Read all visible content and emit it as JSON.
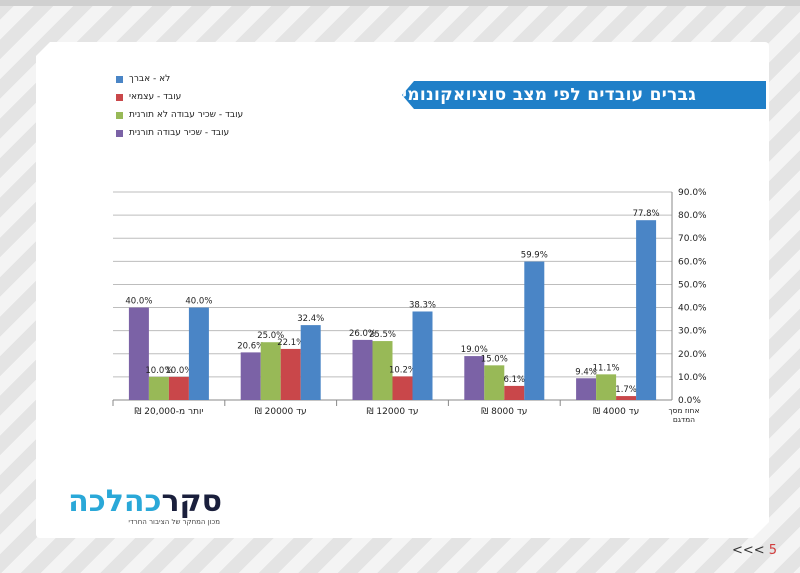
{
  "title": "גברים עובדים לפי מצב סוציואקונומי",
  "logo": {
    "dark_text": "סקר",
    "blue_text": "כהלכה",
    "subtitle": "מכון המחקר של הציבור החרדי"
  },
  "pager": {
    "arrows": "<<<",
    "page": "5"
  },
  "colors": {
    "banner": "#1f7fc8"
  },
  "chart_data": {
    "type": "bar",
    "title": "גברים עובדים לפי מצב סוציואקונומי",
    "categories": [
      "יותר מ-20,000 ₪",
      "עד 20000 ₪",
      "עד 12000 ₪",
      "עד 8000 ₪",
      "עד 4000 ₪"
    ],
    "series": [
      {
        "name": "עובד - שכיר עבודה תורנית",
        "color": "#7b62a6",
        "values": [
          40.0,
          20.6,
          26.0,
          19.0,
          9.4
        ],
        "labels": [
          "40.0%",
          "20.6%",
          "26.0%",
          "19.0%",
          "9.4%"
        ]
      },
      {
        "name": "עובד - שכיר עבודה לא תורנית",
        "color": "#98b957",
        "values": [
          10.0,
          25.0,
          25.5,
          15.0,
          11.1
        ],
        "labels": [
          "10.0%",
          "25.0%",
          "25.5%",
          "15.0%",
          "11.1%"
        ]
      },
      {
        "name": "עובד - עצמאי",
        "color": "#c9474a",
        "values": [
          10.0,
          22.1,
          10.2,
          6.1,
          1.7
        ],
        "labels": [
          "10.0%",
          "22.1%",
          "10.2%",
          "6.1%",
          "1.7%"
        ]
      },
      {
        "name": "לא - אברך",
        "color": "#4a85c6",
        "values": [
          40.0,
          32.4,
          38.3,
          59.9,
          77.8
        ],
        "labels": [
          "40.0%",
          "32.4%",
          "38.3%",
          "59.9%",
          "77.8%"
        ]
      }
    ],
    "legend_order": [
      "לא - אברך",
      "עובד - עצמאי",
      "עובד - שכיר עבודה לא תורנית",
      "עובד - שכיר עבודה תורנית"
    ],
    "ylim": [
      0,
      90
    ],
    "yticks": [
      "0.0%",
      "10.0%",
      "20.0%",
      "30.0%",
      "40.0%",
      "50.0%",
      "60.0%",
      "70.0%",
      "80.0%",
      "90.0%"
    ],
    "axis_label": "אחוז מסך המדגם",
    "axis_side": "right",
    "grid": true
  }
}
